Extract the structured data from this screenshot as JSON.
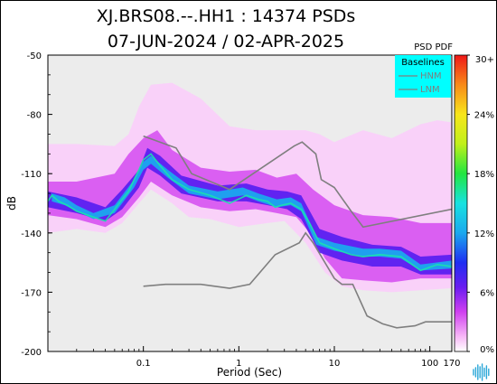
{
  "chart_data": {
    "type": "heatmap",
    "title_line1": "XJ.BRS08.--.HH1 : 14374 PSDs",
    "title_line2": "07-JUN-2024 / 02-APR-2025",
    "xlabel": "Period (Sec)",
    "ylabel": "dB",
    "x_scale": "log",
    "xlim": [
      0.01,
      170
    ],
    "ylim": [
      -200,
      -50
    ],
    "x_ticks": [
      {
        "value": 0.1,
        "label": "0.1"
      },
      {
        "value": 1,
        "label": "1"
      },
      {
        "value": 10,
        "label": "10"
      },
      {
        "value": 100,
        "label": "100"
      },
      {
        "value": 170,
        "label": "170"
      }
    ],
    "y_ticks": [
      {
        "value": -50,
        "label": "-50"
      },
      {
        "value": -80,
        "label": "-80"
      },
      {
        "value": -110,
        "label": "-110"
      },
      {
        "value": -140,
        "label": "-140"
      },
      {
        "value": -170,
        "label": "-170"
      },
      {
        "value": -200,
        "label": "-200"
      }
    ],
    "colorbar": {
      "title": "PSD PDF",
      "range": [
        0,
        30
      ],
      "unit": "%",
      "ticks": [
        {
          "value": 30,
          "label": "30+"
        },
        {
          "value": 24,
          "label": "24%"
        },
        {
          "value": 18,
          "label": "18%"
        },
        {
          "value": 12,
          "label": "12%"
        },
        {
          "value": 6,
          "label": "6%"
        },
        {
          "value": 0,
          "label": "0%"
        }
      ],
      "stops": [
        {
          "value": 0,
          "color": "#ffffff"
        },
        {
          "value": 1.5,
          "color": "#f7b8f7"
        },
        {
          "value": 4,
          "color": "#d040f0"
        },
        {
          "value": 6.5,
          "color": "#6a1cf0"
        },
        {
          "value": 9,
          "color": "#1f2ef2"
        },
        {
          "value": 12,
          "color": "#1ba8ee"
        },
        {
          "value": 15,
          "color": "#18e2e0"
        },
        {
          "value": 18,
          "color": "#22e640"
        },
        {
          "value": 21,
          "color": "#c0f01a"
        },
        {
          "value": 24,
          "color": "#f8e61a"
        },
        {
          "value": 27,
          "color": "#f88a18"
        },
        {
          "value": 30,
          "color": "#f01818"
        }
      ]
    },
    "legend": {
      "title": "Baselines",
      "placement": "top-right",
      "entries": [
        "HNM",
        "LNM"
      ],
      "color": "#00ffff"
    },
    "baselines": [
      {
        "name": "HNM",
        "color": "#7f7f7f",
        "points": [
          [
            0.1,
            -91
          ],
          [
            0.22,
            -97
          ],
          [
            0.32,
            -110
          ],
          [
            0.8,
            -118
          ],
          [
            3.8,
            -96
          ],
          [
            4.6,
            -94
          ],
          [
            6.4,
            -100
          ],
          [
            7.3,
            -113
          ],
          [
            10,
            -117
          ],
          [
            15,
            -129
          ],
          [
            20,
            -137
          ],
          [
            170,
            -128
          ]
        ]
      },
      {
        "name": "LNM",
        "color": "#7f7f7f",
        "points": [
          [
            0.1,
            -167
          ],
          [
            0.17,
            -166
          ],
          [
            0.4,
            -166
          ],
          [
            0.8,
            -168
          ],
          [
            1.3,
            -166
          ],
          [
            2.4,
            -151
          ],
          [
            4.3,
            -145
          ],
          [
            5,
            -140
          ],
          [
            6,
            -145
          ],
          [
            10,
            -163
          ],
          [
            12,
            -166
          ],
          [
            15.6,
            -166
          ],
          [
            22,
            -182
          ],
          [
            32,
            -186
          ],
          [
            45,
            -188
          ],
          [
            70,
            -187
          ],
          [
            90,
            -185
          ],
          [
            170,
            -185
          ]
        ]
      }
    ],
    "median_curve": [
      [
        0.01,
        -124
      ],
      [
        0.011,
        -121
      ],
      [
        0.013,
        -124
      ],
      [
        0.016,
        -126
      ],
      [
        0.02,
        -129
      ],
      [
        0.03,
        -132
      ],
      [
        0.04,
        -134
      ],
      [
        0.05,
        -128
      ],
      [
        0.06,
        -123
      ],
      [
        0.07,
        -119
      ],
      [
        0.08,
        -113
      ],
      [
        0.09,
        -108
      ],
      [
        0.1,
        -103
      ],
      [
        0.12,
        -100
      ],
      [
        0.15,
        -106
      ],
      [
        0.2,
        -113
      ],
      [
        0.3,
        -118
      ],
      [
        0.5,
        -121
      ],
      [
        0.8,
        -125
      ],
      [
        1.2,
        -121
      ],
      [
        1.6,
        -123
      ],
      [
        2.0,
        -124
      ],
      [
        2.4,
        -127
      ],
      [
        2.8,
        -126
      ],
      [
        3.5,
        -125
      ],
      [
        4.5,
        -128
      ],
      [
        5.5,
        -135
      ],
      [
        7,
        -145
      ],
      [
        10,
        -148
      ],
      [
        15,
        -151
      ],
      [
        20,
        -152
      ],
      [
        30,
        -151
      ],
      [
        50,
        -152
      ],
      [
        80,
        -159
      ],
      [
        120,
        -156
      ],
      [
        170,
        -157
      ]
    ],
    "pdf_regions": [
      {
        "level": 1,
        "upper": [
          [
            0.01,
            -95
          ],
          [
            0.02,
            -95
          ],
          [
            0.05,
            -96
          ],
          [
            0.07,
            -90
          ],
          [
            0.09,
            -76
          ],
          [
            0.12,
            -65
          ],
          [
            0.2,
            -64
          ],
          [
            0.4,
            -72
          ],
          [
            0.8,
            -86
          ],
          [
            1.5,
            -88
          ],
          [
            3,
            -88
          ],
          [
            5,
            -88
          ],
          [
            7,
            -90
          ],
          [
            10,
            -94
          ],
          [
            20,
            -88
          ],
          [
            40,
            -92
          ],
          [
            80,
            -85
          ],
          [
            120,
            -83
          ],
          [
            170,
            -84
          ]
        ],
        "lower": [
          [
            0.01,
            -140
          ],
          [
            0.02,
            -138
          ],
          [
            0.04,
            -140
          ],
          [
            0.06,
            -135
          ],
          [
            0.09,
            -125
          ],
          [
            0.12,
            -118
          ],
          [
            0.2,
            -125
          ],
          [
            0.3,
            -132
          ],
          [
            0.5,
            -133
          ],
          [
            1,
            -137
          ],
          [
            2,
            -135
          ],
          [
            3,
            -134
          ],
          [
            5,
            -145
          ],
          [
            8,
            -160
          ],
          [
            12,
            -167
          ],
          [
            20,
            -169
          ],
          [
            40,
            -170
          ],
          [
            80,
            -169
          ],
          [
            170,
            -168
          ]
        ]
      },
      {
        "level": 3.5,
        "upper": [
          [
            0.01,
            -114
          ],
          [
            0.02,
            -114
          ],
          [
            0.05,
            -110
          ],
          [
            0.07,
            -100
          ],
          [
            0.1,
            -92
          ],
          [
            0.14,
            -88
          ],
          [
            0.2,
            -98
          ],
          [
            0.4,
            -107
          ],
          [
            0.8,
            -109
          ],
          [
            1.5,
            -108
          ],
          [
            2.5,
            -112
          ],
          [
            4,
            -110
          ],
          [
            6,
            -118
          ],
          [
            10,
            -126
          ],
          [
            20,
            -131
          ],
          [
            40,
            -132
          ],
          [
            80,
            -135
          ],
          [
            170,
            -135
          ]
        ],
        "lower": [
          [
            0.01,
            -131
          ],
          [
            0.02,
            -133
          ],
          [
            0.04,
            -137
          ],
          [
            0.06,
            -132
          ],
          [
            0.09,
            -122
          ],
          [
            0.12,
            -114
          ],
          [
            0.2,
            -121
          ],
          [
            0.4,
            -127
          ],
          [
            0.8,
            -129
          ],
          [
            1.5,
            -128
          ],
          [
            2.5,
            -130
          ],
          [
            4,
            -132
          ],
          [
            6,
            -142
          ],
          [
            8,
            -153
          ],
          [
            12,
            -163
          ],
          [
            20,
            -164
          ],
          [
            40,
            -165
          ],
          [
            80,
            -163
          ],
          [
            170,
            -163
          ]
        ]
      },
      {
        "level": 7,
        "upper": [
          [
            0.01,
            -119
          ],
          [
            0.02,
            -122
          ],
          [
            0.04,
            -127
          ],
          [
            0.06,
            -118
          ],
          [
            0.09,
            -108
          ],
          [
            0.11,
            -97
          ],
          [
            0.15,
            -101
          ],
          [
            0.25,
            -111
          ],
          [
            0.6,
            -116
          ],
          [
            1.2,
            -115
          ],
          [
            2,
            -118
          ],
          [
            3.2,
            -119
          ],
          [
            4.5,
            -121
          ],
          [
            7,
            -138
          ],
          [
            12,
            -142
          ],
          [
            25,
            -146
          ],
          [
            50,
            -147
          ],
          [
            80,
            -152
          ],
          [
            170,
            -151
          ]
        ],
        "lower": [
          [
            0.01,
            -127
          ],
          [
            0.02,
            -130
          ],
          [
            0.04,
            -134
          ],
          [
            0.06,
            -128
          ],
          [
            0.09,
            -117
          ],
          [
            0.11,
            -107
          ],
          [
            0.15,
            -111
          ],
          [
            0.25,
            -120
          ],
          [
            0.6,
            -124
          ],
          [
            1.2,
            -124
          ],
          [
            2,
            -126
          ],
          [
            3.2,
            -128
          ],
          [
            4.5,
            -133
          ],
          [
            7,
            -150
          ],
          [
            12,
            -154
          ],
          [
            25,
            -157
          ],
          [
            50,
            -157
          ],
          [
            80,
            -161
          ],
          [
            170,
            -161
          ]
        ]
      },
      {
        "level": 12,
        "upper": [
          [
            0.011,
            -120
          ],
          [
            0.015,
            -122
          ],
          [
            0.02,
            -126
          ],
          [
            0.03,
            -130
          ],
          [
            0.05,
            -126
          ],
          [
            0.08,
            -113
          ],
          [
            0.1,
            -104
          ],
          [
            0.12,
            -101
          ],
          [
            0.18,
            -108
          ],
          [
            0.3,
            -116
          ],
          [
            0.6,
            -119
          ],
          [
            1.1,
            -117
          ],
          [
            1.6,
            -120
          ],
          [
            2.5,
            -123
          ],
          [
            3.5,
            -122
          ],
          [
            4.5,
            -125
          ],
          [
            6.5,
            -142
          ],
          [
            10,
            -145
          ],
          [
            20,
            -148
          ],
          [
            30,
            -148
          ],
          [
            50,
            -149
          ],
          [
            80,
            -156
          ],
          [
            170,
            -154
          ]
        ],
        "lower": [
          [
            0.011,
            -124
          ],
          [
            0.015,
            -126
          ],
          [
            0.02,
            -129
          ],
          [
            0.03,
            -133
          ],
          [
            0.05,
            -130
          ],
          [
            0.08,
            -117
          ],
          [
            0.1,
            -108
          ],
          [
            0.12,
            -105
          ],
          [
            0.18,
            -112
          ],
          [
            0.3,
            -120
          ],
          [
            0.6,
            -123
          ],
          [
            1.1,
            -121
          ],
          [
            1.6,
            -124
          ],
          [
            2.5,
            -127
          ],
          [
            3.5,
            -126
          ],
          [
            4.5,
            -129
          ],
          [
            6.5,
            -146
          ],
          [
            10,
            -149
          ],
          [
            20,
            -152
          ],
          [
            30,
            -152
          ],
          [
            50,
            -153
          ],
          [
            80,
            -159
          ],
          [
            170,
            -158
          ]
        ]
      }
    ]
  },
  "icon": {
    "name": "waveform-logo-icon",
    "color": "#2aa7d8"
  }
}
